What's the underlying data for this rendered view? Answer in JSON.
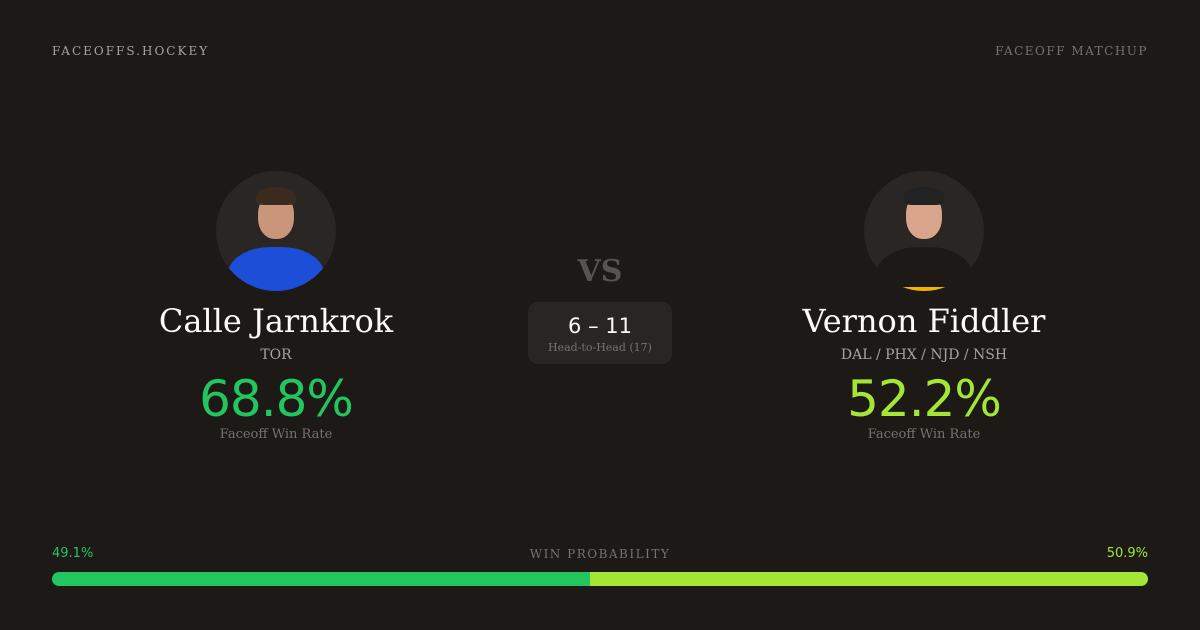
{
  "header": {
    "brand": "FACEOFFS.HOCKEY",
    "tag": "FACEOFF MATCHUP"
  },
  "player1": {
    "name": "Calle Jarnkrok",
    "team": "TOR",
    "win_rate": "68.8%",
    "win_rate_label": "Faceoff Win Rate",
    "color": "#22c55e",
    "jersey_color": "#1d4ed8"
  },
  "player2": {
    "name": "Vernon Fiddler",
    "team": "DAL / PHX / NJD / NSH",
    "win_rate": "52.2%",
    "win_rate_label": "Faceoff Win Rate",
    "color": "#a3e635",
    "jersey_color": "#f5b301"
  },
  "versus": {
    "label": "VS",
    "score": "6 – 11",
    "sub": "Head-to-Head (17)"
  },
  "probability": {
    "title": "WIN PROBABILITY",
    "left_label": "49.1%",
    "right_label": "50.9%",
    "left_value": 49.1,
    "right_value": 50.9
  }
}
